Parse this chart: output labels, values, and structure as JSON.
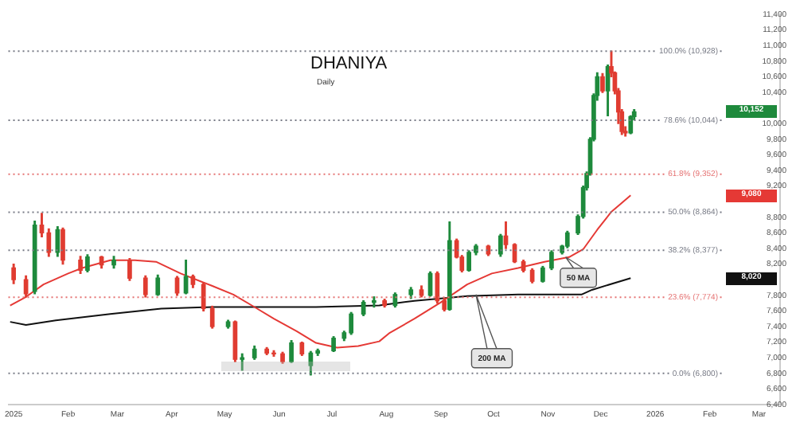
{
  "chart_data": {
    "type": "candlestick",
    "title": "DHANIYA",
    "subtitle": "Daily",
    "x": [
      "2025-01-01",
      "2025-01-08",
      "2025-01-13",
      "2025-01-17",
      "2025-01-21",
      "2025-01-26",
      "2025-01-29",
      "2025-02-08",
      "2025-02-12",
      "2025-02-20",
      "2025-02-27",
      "2025-03-08",
      "2025-03-17",
      "2025-03-24",
      "2025-04-04",
      "2025-04-09",
      "2025-04-13",
      "2025-04-19",
      "2025-04-24",
      "2025-05-03",
      "2025-05-07",
      "2025-05-11",
      "2025-05-18",
      "2025-05-25",
      "2025-05-29",
      "2025-06-03",
      "2025-06-08",
      "2025-06-14",
      "2025-06-19",
      "2025-06-23",
      "2025-07-02",
      "2025-07-08",
      "2025-07-12",
      "2025-07-19",
      "2025-07-25",
      "2025-07-31",
      "2025-08-06",
      "2025-08-15",
      "2025-08-21",
      "2025-08-26",
      "2025-08-30",
      "2025-09-03",
      "2025-09-06",
      "2025-09-10",
      "2025-09-13",
      "2025-09-17",
      "2025-09-21",
      "2025-09-28",
      "2025-10-05",
      "2025-10-08",
      "2025-10-13",
      "2025-10-18",
      "2025-10-23",
      "2025-10-29",
      "2025-11-03",
      "2025-11-09",
      "2025-11-12",
      "2025-11-18",
      "2025-11-21",
      "2025-11-23",
      "2025-11-25",
      "2025-11-27",
      "2025-11-29",
      "2025-12-02",
      "2025-12-05",
      "2025-12-07",
      "2025-12-09",
      "2025-12-11",
      "2025-12-13",
      "2025-12-15",
      "2025-12-18",
      "2025-12-20"
    ],
    "ohlc": [
      [
        8150,
        8200,
        7950,
        8000
      ],
      [
        8000,
        8050,
        7780,
        7820
      ],
      [
        7850,
        8750,
        7820,
        8700
      ],
      [
        8700,
        8850,
        8550,
        8600
      ],
      [
        8600,
        8650,
        8300,
        8350
      ],
      [
        8350,
        8680,
        8300,
        8640
      ],
      [
        8640,
        8660,
        8200,
        8250
      ],
      [
        8250,
        8300,
        8080,
        8120
      ],
      [
        8120,
        8320,
        8100,
        8290
      ],
      [
        8290,
        8300,
        8150,
        8190
      ],
      [
        8190,
        8300,
        8150,
        8250
      ],
      [
        8250,
        8270,
        7990,
        8020
      ],
      [
        8020,
        8050,
        7780,
        7810
      ],
      [
        7810,
        8060,
        7800,
        8020
      ],
      [
        8020,
        8040,
        7800,
        7830
      ],
      [
        7830,
        8250,
        7820,
        8040
      ],
      [
        8040,
        8060,
        7900,
        7940
      ],
      [
        7940,
        7960,
        7600,
        7630
      ],
      [
        7630,
        7660,
        7380,
        7400
      ],
      [
        7400,
        7480,
        7380,
        7460
      ],
      [
        7460,
        7470,
        6950,
        6980
      ],
      [
        6980,
        7050,
        6840,
        7000
      ],
      [
        7000,
        7150,
        6980,
        7110
      ],
      [
        7110,
        7130,
        7040,
        7060
      ],
      [
        7060,
        7090,
        7020,
        7050
      ],
      [
        7050,
        7070,
        6930,
        6950
      ],
      [
        6950,
        7220,
        6940,
        7190
      ],
      [
        7190,
        7200,
        7030,
        7050
      ],
      [
        6900,
        7080,
        6780,
        7060
      ],
      [
        7060,
        7110,
        7030,
        7090
      ],
      [
        7090,
        7270,
        7080,
        7250
      ],
      [
        7250,
        7340,
        7220,
        7320
      ],
      [
        7320,
        7580,
        7300,
        7560
      ],
      [
        7560,
        7730,
        7540,
        7710
      ],
      [
        7710,
        7780,
        7650,
        7730
      ],
      [
        7730,
        7750,
        7650,
        7670
      ],
      [
        7670,
        7830,
        7650,
        7810
      ],
      [
        7810,
        7900,
        7760,
        7870
      ],
      [
        7870,
        7920,
        7780,
        7800
      ],
      [
        7800,
        8100,
        7790,
        8080
      ],
      [
        8080,
        8100,
        7700,
        7730
      ],
      [
        7730,
        7760,
        7600,
        7620
      ],
      [
        7620,
        8740,
        7610,
        8500
      ],
      [
        8500,
        8520,
        8280,
        8290
      ],
      [
        8290,
        8310,
        8100,
        8120
      ],
      [
        8120,
        8370,
        8110,
        8350
      ],
      [
        8350,
        8450,
        8320,
        8430
      ],
      [
        8430,
        8440,
        8310,
        8330
      ],
      [
        8330,
        8580,
        8300,
        8560
      ],
      [
        8560,
        8740,
        8400,
        8450
      ],
      [
        8450,
        8460,
        8220,
        8230
      ],
      [
        8230,
        8250,
        8100,
        8120
      ],
      [
        8120,
        8140,
        7960,
        7980
      ],
      [
        7980,
        8170,
        7970,
        8150
      ],
      [
        8150,
        8370,
        8130,
        8350
      ],
      [
        8350,
        8440,
        8330,
        8430
      ],
      [
        8430,
        8620,
        8410,
        8600
      ],
      [
        8600,
        8830,
        8580,
        8810
      ],
      [
        8810,
        9200,
        8790,
        9180
      ],
      [
        9180,
        9380,
        9150,
        9360
      ],
      [
        9360,
        9820,
        9340,
        9800
      ],
      [
        9800,
        10380,
        9780,
        10360
      ],
      [
        10360,
        10650,
        10300,
        10600
      ],
      [
        10600,
        10640,
        10400,
        10420
      ],
      [
        10420,
        10750,
        10100,
        10730
      ],
      [
        10730,
        10928,
        10600,
        10650
      ],
      [
        10650,
        10660,
        10380,
        10420
      ],
      [
        10420,
        10450,
        10000,
        10150
      ],
      [
        10150,
        10180,
        9860,
        9900
      ],
      [
        9900,
        9960,
        9840,
        9880
      ],
      [
        9880,
        10100,
        9870,
        10090
      ],
      [
        10090,
        10180,
        10050,
        10152
      ]
    ],
    "series": [
      {
        "type": "line",
        "color": "#e53935",
        "x": [
          "2024-12-30",
          "2025-01-08",
          "2025-01-18",
          "2025-02-01",
          "2025-02-09",
          "2025-02-25",
          "2025-03-11",
          "2025-03-23",
          "2025-04-06",
          "2025-04-24",
          "2025-05-06",
          "2025-05-18",
          "2025-05-29",
          "2025-06-11",
          "2025-06-22",
          "2025-07-04",
          "2025-07-16",
          "2025-07-28",
          "2025-08-03",
          "2025-08-17",
          "2025-09-01",
          "2025-09-16",
          "2025-09-30",
          "2025-10-15",
          "2025-10-30",
          "2025-11-13",
          "2025-11-21",
          "2025-11-29",
          "2025-12-07",
          "2025-12-18"
        ],
        "values": [
          7670,
          7780,
          7940,
          8080,
          8150,
          8250,
          8250,
          8230,
          8080,
          7920,
          7810,
          7650,
          7500,
          7340,
          7190,
          7130,
          7150,
          7210,
          7320,
          7500,
          7710,
          7940,
          8080,
          8150,
          8230,
          8290,
          8390,
          8640,
          8870,
          9080
        ]
      },
      {
        "type": "line",
        "color": "#111111",
        "x": [
          "2024-12-30",
          "2025-01-08",
          "2025-01-25",
          "2025-02-25",
          "2025-03-26",
          "2025-04-24",
          "2025-05-24",
          "2025-06-22",
          "2025-07-28",
          "2025-08-17",
          "2025-09-16",
          "2025-10-15",
          "2025-11-20",
          "2025-11-26",
          "2025-12-18"
        ],
        "values": [
          7460,
          7420,
          7480,
          7560,
          7630,
          7650,
          7650,
          7650,
          7670,
          7730,
          7790,
          7810,
          7810,
          7870,
          8020
        ]
      }
    ],
    "xlim": [
      "2024-12-29",
      "2026-03-13"
    ],
    "xticks": [
      {
        "value": "2025-01-01",
        "label": "2025"
      },
      {
        "value": "2025-02-01",
        "label": "Feb"
      },
      {
        "value": "2025-03-01",
        "label": "Mar"
      },
      {
        "value": "2025-04-01",
        "label": "Apr"
      },
      {
        "value": "2025-05-01",
        "label": "May"
      },
      {
        "value": "2025-06-01",
        "label": "Jun"
      },
      {
        "value": "2025-07-01",
        "label": "Jul"
      },
      {
        "value": "2025-08-01",
        "label": "Aug"
      },
      {
        "value": "2025-09-01",
        "label": "Sep"
      },
      {
        "value": "2025-10-01",
        "label": "Oct"
      },
      {
        "value": "2025-11-01",
        "label": "Nov"
      },
      {
        "value": "2025-12-01",
        "label": "Dec"
      },
      {
        "value": "2026-01-01",
        "label": "2026"
      },
      {
        "value": "2026-02-01",
        "label": "Feb"
      },
      {
        "value": "2026-03-01",
        "label": "Mar"
      }
    ],
    "ylim": [
      6400,
      11400
    ],
    "yticks": [
      {
        "value": 6400,
        "label": "6,400"
      },
      {
        "value": 6600,
        "label": "6,600"
      },
      {
        "value": 6800,
        "label": "6,800"
      },
      {
        "value": 7000,
        "label": "7,000"
      },
      {
        "value": 7200,
        "label": "7,200"
      },
      {
        "value": 7400,
        "label": "7,400"
      },
      {
        "value": 7600,
        "label": "7,600"
      },
      {
        "value": 7800,
        "label": "7,800"
      },
      {
        "value": 8200,
        "label": "8,200"
      },
      {
        "value": 8400,
        "label": "8,400"
      },
      {
        "value": 8600,
        "label": "8,600"
      },
      {
        "value": 8800,
        "label": "8,800"
      },
      {
        "value": 9200,
        "label": "9,200"
      },
      {
        "value": 9400,
        "label": "9,400"
      },
      {
        "value": 9600,
        "label": "9,600"
      },
      {
        "value": 9800,
        "label": "9,800"
      },
      {
        "value": 10000,
        "label": "10,000"
      },
      {
        "value": 10400,
        "label": "10,400"
      },
      {
        "value": 10600,
        "label": "10,600"
      },
      {
        "value": 10800,
        "label": "10,800"
      },
      {
        "value": 11000,
        "label": "11,000"
      },
      {
        "value": 11200,
        "label": "11,200"
      },
      {
        "value": 11400,
        "label": "11,400"
      }
    ],
    "ref_lines": [
      {
        "axis": "y",
        "value": 10928,
        "label": "100.0% (10,928)",
        "color": "#787b86",
        "line_style": "dotted"
      },
      {
        "axis": "y",
        "value": 10044,
        "label": "78.6% (10,044)",
        "color": "#787b86",
        "line_style": "dotted"
      },
      {
        "axis": "y",
        "value": 9352,
        "label": "61.8% (9,352)",
        "color": "#e57373",
        "line_style": "dotted"
      },
      {
        "axis": "y",
        "value": 8864,
        "label": "50.0% (8,864)",
        "color": "#787b86",
        "line_style": "dotted"
      },
      {
        "axis": "y",
        "value": 8377,
        "label": "38.2% (8,377)",
        "color": "#787b86",
        "line_style": "dotted"
      },
      {
        "axis": "y",
        "value": 7774,
        "label": "23.6% (7,774)",
        "color": "#e57373",
        "line_style": "dotted"
      },
      {
        "axis": "y",
        "value": 6800,
        "label": "0.0% (6,800)",
        "color": "#787b86",
        "line_style": "dotted"
      }
    ],
    "annotations": [
      {
        "text": "50 MA",
        "x": "2025-11-11",
        "y": 8290
      },
      {
        "text": "200 MA",
        "x": "2025-09-21",
        "y": 7810
      },
      "10,152",
      "9,080",
      "8,020"
    ],
    "marker": "none",
    "grid": false,
    "legend": false
  }
}
